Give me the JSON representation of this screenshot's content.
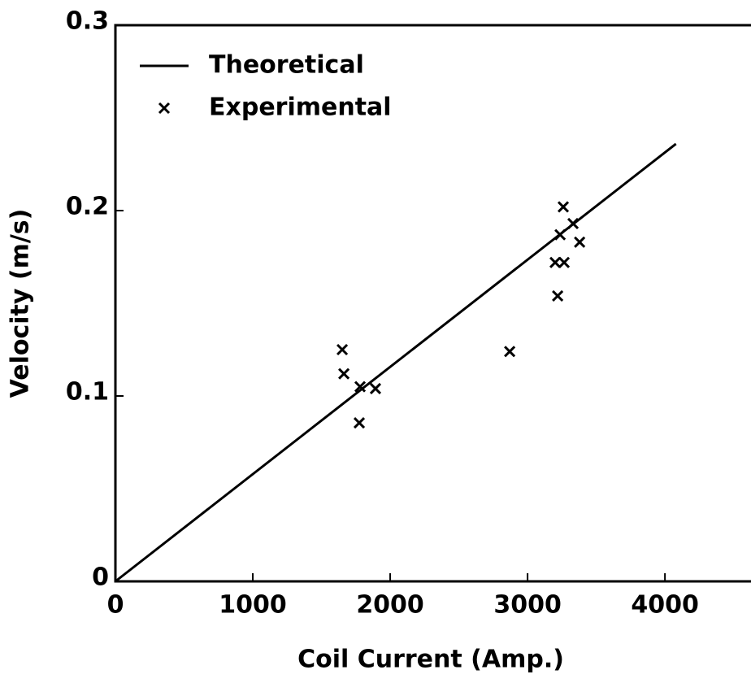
{
  "chart_data": {
    "type": "scatter",
    "xlabel": "Coil Current (Amp.)",
    "ylabel": "Velocity (m/s)",
    "xlim": [
      0,
      4650
    ],
    "ylim": [
      0,
      0.3
    ],
    "xticks": [
      0,
      1000,
      2000,
      3000,
      4000
    ],
    "yticks": [
      0,
      0.1,
      0.2,
      0.3
    ],
    "legend": "upper left",
    "series": [
      {
        "name": "Theoretical",
        "type": "line",
        "color": "#000000",
        "x": [
          0,
          4080
        ],
        "values": [
          0,
          0.236
        ]
      },
      {
        "name": "Experimental",
        "type": "scatter",
        "color": "#000000",
        "x": [
          1651,
          1663,
          1775,
          1781,
          1893,
          2870,
          3260,
          3237,
          3331,
          3379,
          3201,
          3266,
          3219
        ],
        "values": [
          0.125,
          0.112,
          0.0855,
          0.105,
          0.104,
          0.124,
          0.202,
          0.187,
          0.193,
          0.183,
          0.172,
          0.172,
          0.154
        ]
      }
    ]
  }
}
